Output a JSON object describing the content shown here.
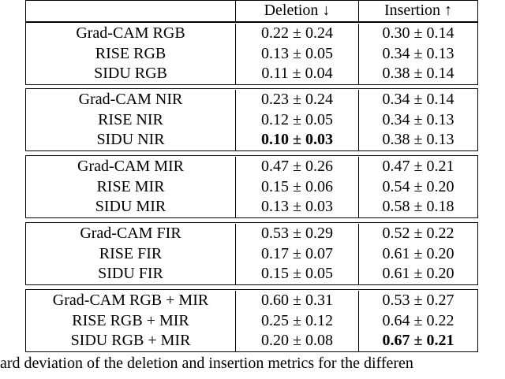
{
  "table": {
    "header": [
      "Deletion ↓",
      "Insertion ↑"
    ],
    "groups": [
      {
        "rows": [
          {
            "label": "Grad-CAM RGB",
            "deletion": "0.22 ± 0.24",
            "insertion": "0.30 ± 0.14"
          },
          {
            "label": "RISE RGB",
            "deletion": "0.13 ± 0.05",
            "insertion": "0.34 ± 0.13"
          },
          {
            "label": "SIDU RGB",
            "deletion": "0.11 ± 0.04",
            "insertion": "0.38 ± 0.14"
          }
        ]
      },
      {
        "rows": [
          {
            "label": "Grad-CAM NIR",
            "deletion": "0.23 ± 0.24",
            "insertion": "0.34 ± 0.14"
          },
          {
            "label": "RISE NIR",
            "deletion": "0.12 ± 0.05",
            "insertion": "0.34 ± 0.13"
          },
          {
            "label": "SIDU NIR",
            "deletion": "0.10 ± 0.03",
            "insertion": "0.38 ± 0.13"
          }
        ]
      },
      {
        "rows": [
          {
            "label": "Grad-CAM MIR",
            "deletion": "0.47 ± 0.26",
            "insertion": "0.47 ± 0.21"
          },
          {
            "label": "RISE MIR",
            "deletion": "0.15 ± 0.06",
            "insertion": "0.54 ± 0.20"
          },
          {
            "label": "SIDU MIR",
            "deletion": "0.13 ± 0.03",
            "insertion": "0.58 ± 0.18"
          }
        ]
      },
      {
        "rows": [
          {
            "label": "Grad-CAM FIR",
            "deletion": "0.53 ± 0.29",
            "insertion": "0.52 ± 0.22"
          },
          {
            "label": "RISE FIR",
            "deletion": "0.17 ± 0.07",
            "insertion": "0.61 ± 0.20"
          },
          {
            "label": "SIDU FIR",
            "deletion": "0.15 ± 0.05",
            "insertion": "0.61 ± 0.20"
          }
        ]
      },
      {
        "rows": [
          {
            "label": "Grad-CAM RGB + MIR",
            "deletion": "0.60 ± 0.31",
            "insertion": "0.53 ± 0.27"
          },
          {
            "label": "RISE RGB + MIR",
            "deletion": "0.25 ± 0.12",
            "insertion": "0.64 ± 0.22"
          },
          {
            "label": "SIDU RGB + MIR",
            "deletion": "0.20 ± 0.08",
            "insertion": "0.67 ± 0.21"
          }
        ]
      }
    ],
    "bold_cells": [
      "table.groups.1.rows.2.deletion",
      "table.groups.4.rows.2.insertion"
    ]
  },
  "caption": "ard deviation of the deletion and insertion metrics for the differen"
}
